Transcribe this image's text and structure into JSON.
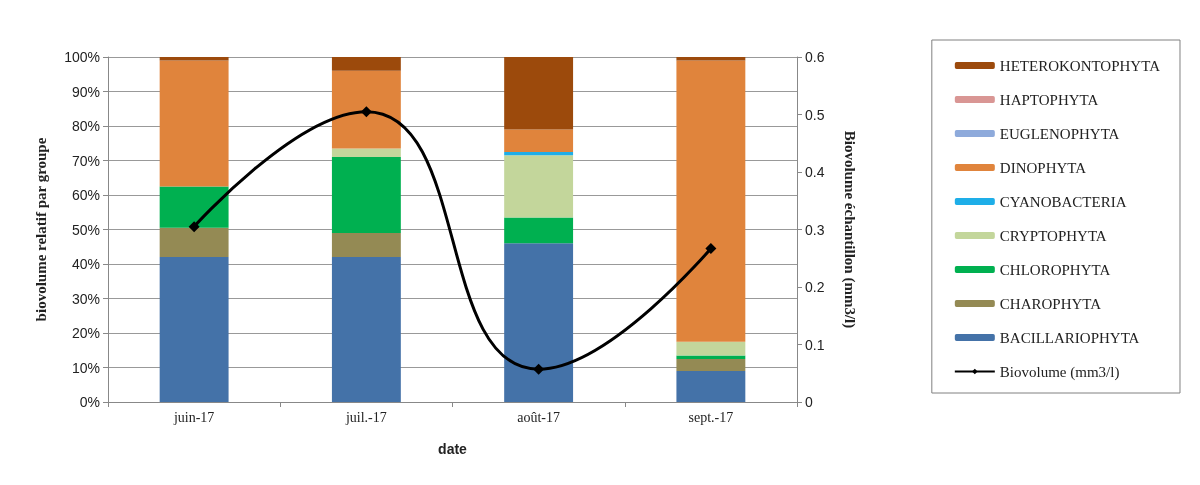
{
  "chart_data": {
    "type": "bar",
    "stacked": true,
    "xlabel": "date",
    "ylabel": "biovolume relatif par groupe",
    "y2label": "Biovolume échantillon (mm3/l)",
    "categories": [
      "juin-17",
      "juil.-17",
      "août-17",
      "sept.-17"
    ],
    "ylim": [
      0,
      100
    ],
    "yticks": [
      {
        "value": 0,
        "label": "0%"
      },
      {
        "value": 10,
        "label": "10%"
      },
      {
        "value": 20,
        "label": "20%"
      },
      {
        "value": 30,
        "label": "30%"
      },
      {
        "value": 40,
        "label": "40%"
      },
      {
        "value": 50,
        "label": "50%"
      },
      {
        "value": 60,
        "label": "60%"
      },
      {
        "value": 70,
        "label": "70%"
      },
      {
        "value": 80,
        "label": "80%"
      },
      {
        "value": 90,
        "label": "90%"
      },
      {
        "value": 100,
        "label": "100%"
      }
    ],
    "y2lim": [
      0,
      0.6
    ],
    "y2ticks": [
      0,
      0.1,
      0.2,
      0.3,
      0.4,
      0.5,
      0.6
    ],
    "grid": "y",
    "legend": "right",
    "series": [
      {
        "name": "BACILLARIOPHYTA",
        "color": "#4472a8",
        "values": [
          42,
          42,
          46,
          9
        ]
      },
      {
        "name": "CHAROPHYTA",
        "color": "#948a54",
        "values": [
          8.5,
          7,
          0,
          3.5
        ]
      },
      {
        "name": "CHLOROPHYTA",
        "color": "#00b050",
        "values": [
          12,
          22,
          7.5,
          1
        ]
      },
      {
        "name": "CRYPTOPHYTA",
        "color": "#c3d69b",
        "values": [
          0,
          2.5,
          18,
          4
        ]
      },
      {
        "name": "CYANOBACTERIA",
        "color": "#1eaee8",
        "values": [
          0,
          0,
          1,
          0
        ]
      },
      {
        "name": "DINOPHYTA",
        "color": "#e0843c",
        "values": [
          36.5,
          22.5,
          6.5,
          81.5
        ]
      },
      {
        "name": "EUGLENOPHYTA",
        "color": "#8eaadb",
        "values": [
          0,
          0,
          0,
          0
        ]
      },
      {
        "name": "HAPTOPHYTA",
        "color": "#d99694",
        "values": [
          0,
          0,
          0,
          0
        ]
      },
      {
        "name": "HETEROKONTOPHYTA",
        "color": "#9c4a0c",
        "values": [
          1,
          4,
          21,
          1
        ]
      },
      {
        "name": "Biovolume (mm3/l)",
        "type": "line",
        "axis": "y2",
        "marker": "diamond",
        "color": "#000000",
        "values": [
          0.305,
          0.505,
          0.057,
          0.267
        ]
      }
    ]
  }
}
